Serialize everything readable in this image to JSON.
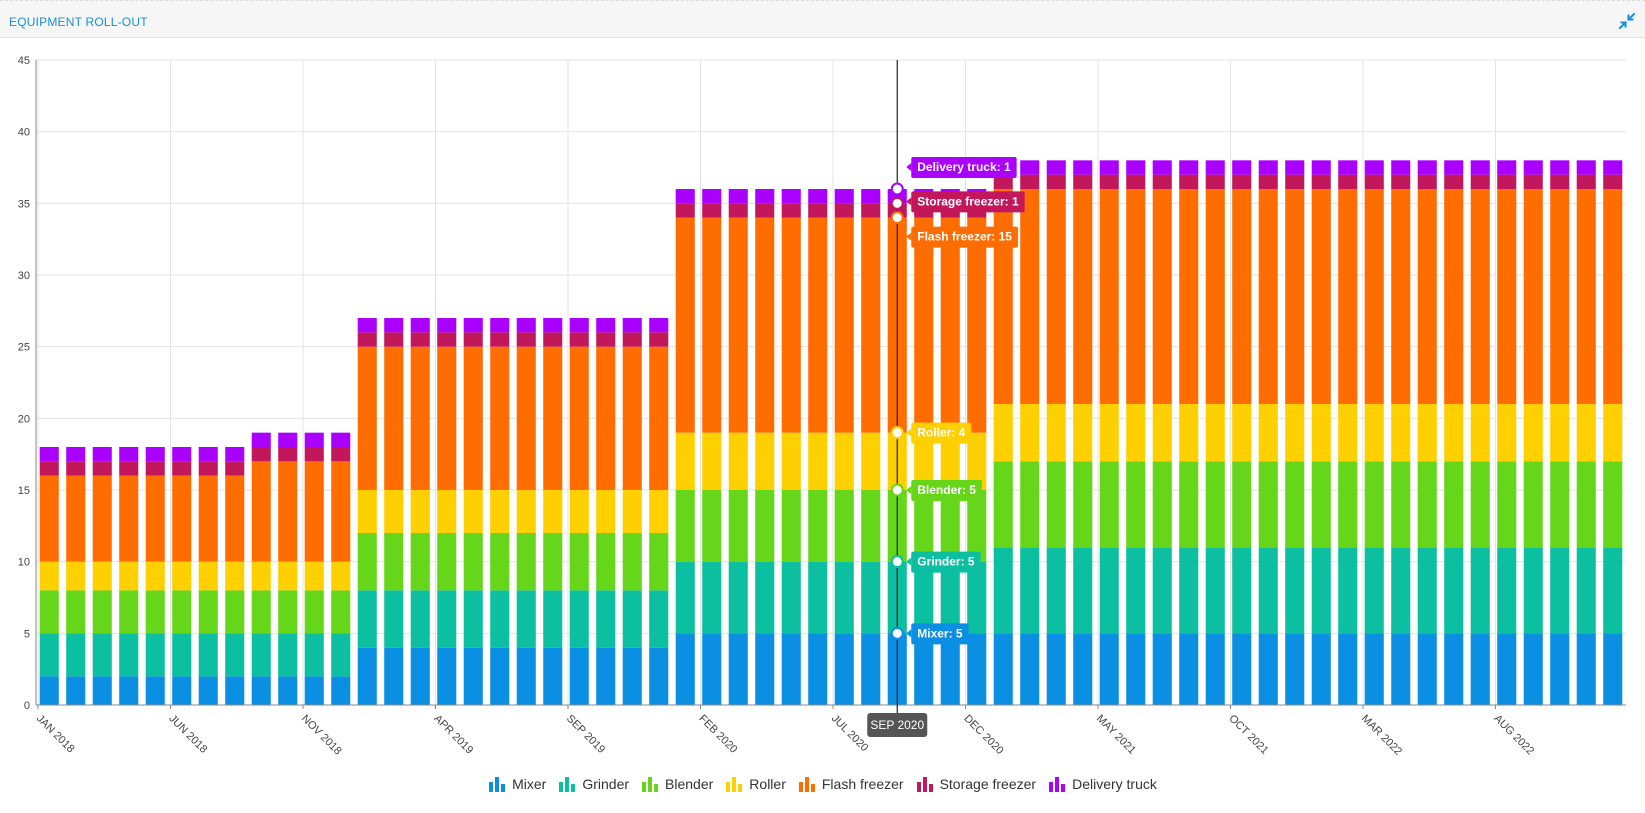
{
  "panel": {
    "title": "EQUIPMENT ROLL-OUT",
    "collapse_icon": "collapse-arrows-icon",
    "icon_color": "#1a8fd6"
  },
  "chart_data": {
    "type": "bar",
    "stacked": true,
    "title": "",
    "xlabel": "",
    "ylabel": "",
    "ylim": [
      0,
      45
    ],
    "yticks": [
      0,
      5,
      10,
      15,
      20,
      25,
      30,
      35,
      40,
      45
    ],
    "grid": true,
    "legend_position": "bottom",
    "categories": [
      "JAN 2018",
      "FEB 2018",
      "MAR 2018",
      "APR 2018",
      "MAY 2018",
      "JUN 2018",
      "JUL 2018",
      "AUG 2018",
      "SEP 2018",
      "OCT 2018",
      "NOV 2018",
      "DEC 2018",
      "JAN 2019",
      "FEB 2019",
      "MAR 2019",
      "APR 2019",
      "MAY 2019",
      "JUN 2019",
      "JUL 2019",
      "AUG 2019",
      "SEP 2019",
      "OCT 2019",
      "NOV 2019",
      "DEC 2019",
      "JAN 2020",
      "FEB 2020",
      "MAR 2020",
      "APR 2020",
      "MAY 2020",
      "JUN 2020",
      "JUL 2020",
      "AUG 2020",
      "SEP 2020",
      "OCT 2020",
      "NOV 2020",
      "DEC 2020",
      "JAN 2021",
      "FEB 2021",
      "MAR 2021",
      "APR 2021",
      "MAY 2021",
      "JUN 2021",
      "JUL 2021",
      "AUG 2021",
      "SEP 2021",
      "OCT 2021",
      "NOV 2021",
      "DEC 2021",
      "JAN 2022",
      "FEB 2022",
      "MAR 2022",
      "APR 2022",
      "MAY 2022",
      "JUN 2022",
      "JUL 2022",
      "AUG 2022",
      "SEP 2022",
      "OCT 2022",
      "NOV 2022",
      "DEC 2022"
    ],
    "x_tick_labels": [
      {
        "index": 0,
        "label": "JAN 2018"
      },
      {
        "index": 5,
        "label": "JUN 2018"
      },
      {
        "index": 10,
        "label": "NOV 2018"
      },
      {
        "index": 15,
        "label": "APR 2019"
      },
      {
        "index": 20,
        "label": "SEP 2019"
      },
      {
        "index": 25,
        "label": "FEB 2020"
      },
      {
        "index": 30,
        "label": "JUL 2020"
      },
      {
        "index": 35,
        "label": "DEC 2020"
      },
      {
        "index": 40,
        "label": "MAY 2021"
      },
      {
        "index": 45,
        "label": "OCT 2021"
      },
      {
        "index": 50,
        "label": "MAR 2022"
      },
      {
        "index": 55,
        "label": "AUG 2022"
      }
    ],
    "series": [
      {
        "name": "Mixer",
        "color": "#0b8fe3",
        "values": [
          2,
          2,
          2,
          2,
          2,
          2,
          2,
          2,
          2,
          2,
          2,
          2,
          4,
          4,
          4,
          4,
          4,
          4,
          4,
          4,
          4,
          4,
          4,
          4,
          5,
          5,
          5,
          5,
          5,
          5,
          5,
          5,
          5,
          5,
          5,
          5,
          5,
          5,
          5,
          5,
          5,
          5,
          5,
          5,
          5,
          5,
          5,
          5,
          5,
          5,
          5,
          5,
          5,
          5,
          5,
          5,
          5,
          5,
          5,
          5
        ]
      },
      {
        "name": "Grinder",
        "color": "#0cbfa0",
        "values": [
          3,
          3,
          3,
          3,
          3,
          3,
          3,
          3,
          3,
          3,
          3,
          3,
          4,
          4,
          4,
          4,
          4,
          4,
          4,
          4,
          4,
          4,
          4,
          4,
          5,
          5,
          5,
          5,
          5,
          5,
          5,
          5,
          5,
          5,
          5,
          5,
          6,
          6,
          6,
          6,
          6,
          6,
          6,
          6,
          6,
          6,
          6,
          6,
          6,
          6,
          6,
          6,
          6,
          6,
          6,
          6,
          6,
          6,
          6,
          6
        ]
      },
      {
        "name": "Blender",
        "color": "#66d61a",
        "values": [
          3,
          3,
          3,
          3,
          3,
          3,
          3,
          3,
          3,
          3,
          3,
          3,
          4,
          4,
          4,
          4,
          4,
          4,
          4,
          4,
          4,
          4,
          4,
          4,
          5,
          5,
          5,
          5,
          5,
          5,
          5,
          5,
          5,
          5,
          5,
          5,
          6,
          6,
          6,
          6,
          6,
          6,
          6,
          6,
          6,
          6,
          6,
          6,
          6,
          6,
          6,
          6,
          6,
          6,
          6,
          6,
          6,
          6,
          6,
          6
        ]
      },
      {
        "name": "Roller",
        "color": "#ffd000",
        "values": [
          2,
          2,
          2,
          2,
          2,
          2,
          2,
          2,
          2,
          2,
          2,
          2,
          3,
          3,
          3,
          3,
          3,
          3,
          3,
          3,
          3,
          3,
          3,
          3,
          4,
          4,
          4,
          4,
          4,
          4,
          4,
          4,
          4,
          4,
          4,
          4,
          4,
          4,
          4,
          4,
          4,
          4,
          4,
          4,
          4,
          4,
          4,
          4,
          4,
          4,
          4,
          4,
          4,
          4,
          4,
          4,
          4,
          4,
          4,
          4
        ]
      },
      {
        "name": "Flash freezer",
        "color": "#ff6d00",
        "values": [
          6,
          6,
          6,
          6,
          6,
          6,
          6,
          6,
          7,
          7,
          7,
          7,
          10,
          10,
          10,
          10,
          10,
          10,
          10,
          10,
          10,
          10,
          10,
          10,
          15,
          15,
          15,
          15,
          15,
          15,
          15,
          15,
          15,
          15,
          15,
          15,
          15,
          15,
          15,
          15,
          15,
          15,
          15,
          15,
          15,
          15,
          15,
          15,
          15,
          15,
          15,
          15,
          15,
          15,
          15,
          15,
          15,
          15,
          15,
          15
        ]
      },
      {
        "name": "Storage freezer",
        "color": "#c2185b",
        "values": [
          1,
          1,
          1,
          1,
          1,
          1,
          1,
          1,
          1,
          1,
          1,
          1,
          1,
          1,
          1,
          1,
          1,
          1,
          1,
          1,
          1,
          1,
          1,
          1,
          1,
          1,
          1,
          1,
          1,
          1,
          1,
          1,
          1,
          1,
          1,
          1,
          1,
          1,
          1,
          1,
          1,
          1,
          1,
          1,
          1,
          1,
          1,
          1,
          1,
          1,
          1,
          1,
          1,
          1,
          1,
          1,
          1,
          1,
          1,
          1
        ]
      },
      {
        "name": "Delivery truck",
        "color": "#aa00ff",
        "values": [
          1,
          1,
          1,
          1,
          1,
          1,
          1,
          1,
          1,
          1,
          1,
          1,
          1,
          1,
          1,
          1,
          1,
          1,
          1,
          1,
          1,
          1,
          1,
          1,
          1,
          1,
          1,
          1,
          1,
          1,
          1,
          1,
          1,
          1,
          1,
          1,
          1,
          1,
          1,
          1,
          1,
          1,
          1,
          1,
          1,
          1,
          1,
          1,
          1,
          1,
          1,
          1,
          1,
          1,
          1,
          1,
          1,
          1,
          1,
          1
        ]
      }
    ],
    "tooltip": {
      "category_index": 32,
      "category_label": "SEP 2020",
      "items": [
        {
          "series": "Delivery truck",
          "label": "Delivery truck: 1"
        },
        {
          "series": "Storage freezer",
          "label": "Storage freezer: 1"
        },
        {
          "series": "Flash freezer",
          "label": "Flash freezer: 15"
        },
        {
          "series": "Roller",
          "label": "Roller: 4"
        },
        {
          "series": "Blender",
          "label": "Blender: 5"
        },
        {
          "series": "Grinder",
          "label": "Grinder: 5"
        },
        {
          "series": "Mixer",
          "label": "Mixer: 5"
        }
      ]
    },
    "legend_icon": "bar-chart-icon"
  }
}
